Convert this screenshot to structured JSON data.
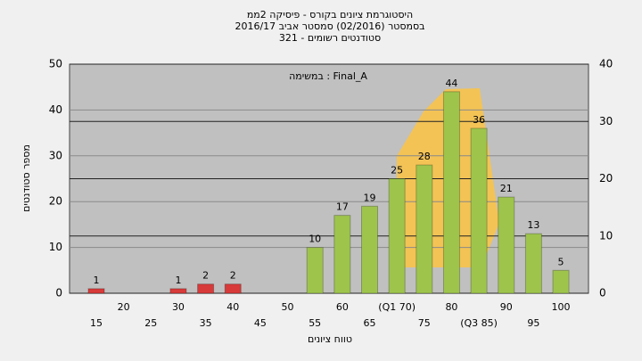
{
  "chart_data": {
    "type": "bar",
    "title": [
      "היסטוגרמת ציונים בקורס - פיסיקה 2ממ",
      "בסמסטר  (02/2016)  סמסטר אביב 2016/17",
      "סטודנטים רשומים - 321"
    ],
    "annotation": "במשימה : Final_A",
    "xlabel": "טווח ציונים",
    "ylabel": "מספר סטודנטים",
    "categories": [
      "15",
      "20",
      "25",
      "30",
      "35",
      "40",
      "45",
      "50",
      "55",
      "60",
      "65",
      "(Q1 70)",
      "75",
      "80",
      "(Q3 85)",
      "90",
      "95",
      "100"
    ],
    "values": [
      1,
      0,
      0,
      1,
      2,
      2,
      0,
      0,
      10,
      17,
      19,
      25,
      28,
      44,
      36,
      21,
      13,
      5
    ],
    "colors": [
      "#d83a3a",
      "#d83a3a",
      "#d83a3a",
      "#d83a3a",
      "#d83a3a",
      "#d83a3a",
      "#d83a3a",
      "#d83a3a",
      "#9ec44c",
      "#9ec44c",
      "#9ec44c",
      "#9ec44c",
      "#9ec44c",
      "#9ec44c",
      "#9ec44c",
      "#9ec44c",
      "#9ec44c",
      "#9ec44c"
    ],
    "ylim": [
      0,
      50
    ],
    "yticks": [
      0,
      10,
      20,
      30,
      40,
      50
    ],
    "y2lim": [
      0,
      40
    ],
    "y2ticks": [
      0,
      10,
      20,
      30,
      40
    ],
    "grid": true
  }
}
